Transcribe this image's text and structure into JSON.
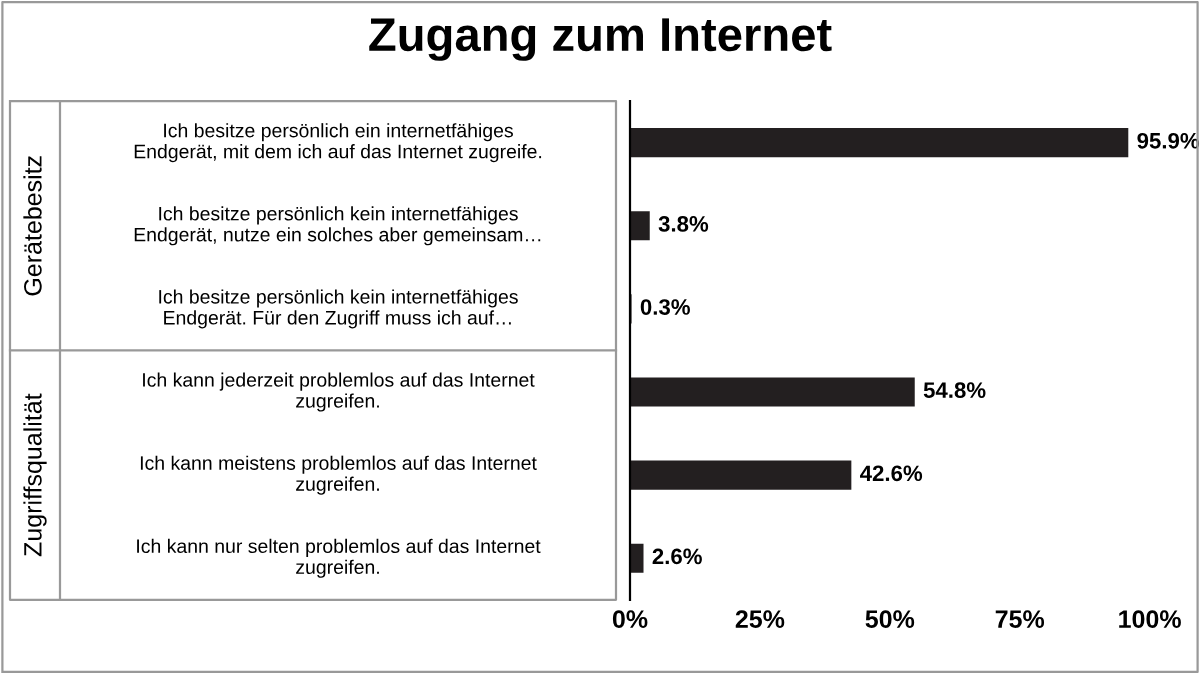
{
  "chart_data": {
    "type": "bar",
    "orientation": "horizontal",
    "title": "Zugang zum Internet",
    "categories": [
      "Ich besitze persönlich ein internetfähiges\nEndgerät, mit dem ich auf das Internet zugreife.",
      "Ich besitze persönlich kein internetfähiges\nEndgerät, nutze ein solches aber gemeinsam…",
      "Ich besitze persönlich kein internetfähiges\nEndgerät. Für den Zugriff muss ich auf…",
      "Ich kann jederzeit problemlos auf das Internet\nzugreifen.",
      "Ich kann meistens problemlos auf das Internet\nzugreifen.",
      "Ich kann nur selten problemlos auf das Internet\nzugreifen."
    ],
    "values": [
      95.9,
      3.8,
      0.3,
      54.8,
      42.6,
      2.6
    ],
    "value_labels": [
      "95.9%",
      "3.8%",
      "0.3%",
      "54.8%",
      "42.6%",
      "2.6%"
    ],
    "color": "#231f20",
    "annotations": [
      "Gerätebesitz",
      "Zugriffsqualität"
    ],
    "xlim": [
      0,
      100
    ],
    "xticks": [
      {
        "value": 0,
        "label": "0%"
      },
      {
        "value": 25,
        "label": "25%"
      },
      {
        "value": 50,
        "label": "50%"
      },
      {
        "value": 75,
        "label": "75%"
      },
      {
        "value": 100,
        "label": "100%"
      }
    ],
    "grid": false,
    "legend": false
  }
}
